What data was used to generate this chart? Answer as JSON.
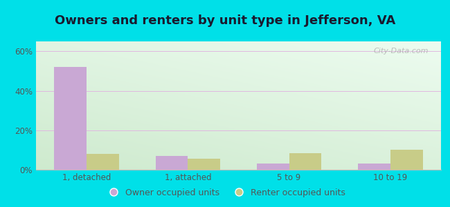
{
  "title": "Owners and renters by unit type in Jefferson, VA",
  "categories": [
    "1, detached",
    "1, attached",
    "5 to 9",
    "10 to 19"
  ],
  "owner_values": [
    52,
    7,
    3,
    3.2
  ],
  "renter_values": [
    8,
    5.5,
    8.5,
    10
  ],
  "owner_color": "#c9a8d4",
  "renter_color": "#c8cc88",
  "ylim": [
    0,
    65
  ],
  "yticks": [
    0,
    20,
    40,
    60
  ],
  "ytick_labels": [
    "0%",
    "20%",
    "40%",
    "60%"
  ],
  "outer_bg": "#00e0e8",
  "plot_bg_topleft": "#d8eed8",
  "plot_bg_topright": "#edfaed",
  "plot_bg_bottom": "#f0fdf0",
  "legend_owner": "Owner occupied units",
  "legend_renter": "Renter occupied units",
  "bar_width": 0.32,
  "grid_color": "#e0b8e0",
  "watermark": "City-Data.com",
  "title_fontsize": 13,
  "tick_fontsize": 8.5
}
